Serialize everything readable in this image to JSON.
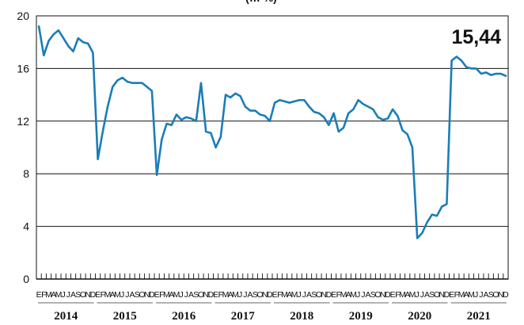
{
  "chart_data": {
    "type": "line",
    "title": "(… %)",
    "callout": "15,44",
    "ylim": [
      0,
      20
    ],
    "yticks": [
      "0",
      "4",
      "8",
      "12",
      "16",
      "20"
    ],
    "grid": "horizontal",
    "line_color": "#1a7db8",
    "month_labels": [
      "E",
      "F",
      "M",
      "A",
      "M",
      "J",
      "J",
      "A",
      "S",
      "O",
      "N",
      "D"
    ],
    "years": [
      "2014",
      "2015",
      "2016",
      "2017",
      "2018",
      "2019",
      "2020",
      "2021"
    ],
    "series": [
      {
        "values": [
          19.2,
          17.0,
          18.1,
          18.6,
          18.9,
          18.3,
          17.7,
          17.3,
          18.3,
          18.0,
          17.9,
          17.2,
          9.1,
          11.2,
          13.1,
          14.6,
          15.1,
          15.3,
          15.0,
          14.9,
          14.9,
          14.9,
          14.6,
          14.3,
          7.9,
          10.6,
          11.8,
          11.7,
          12.5,
          12.1,
          12.3,
          12.2,
          12.0,
          14.9,
          11.2,
          11.1,
          10.0,
          10.8,
          14.0,
          13.8,
          14.1,
          13.9,
          13.1,
          12.8,
          12.8,
          12.5,
          12.4,
          12.0,
          13.4,
          13.6,
          13.5,
          13.4,
          13.5,
          13.6,
          13.6,
          13.1,
          12.7,
          12.6,
          12.3,
          11.7,
          12.6,
          11.2,
          11.5,
          12.6,
          12.9,
          13.6,
          13.3,
          13.1,
          12.9,
          12.3,
          12.1,
          12.2,
          12.9,
          12.4,
          11.3,
          11.0,
          10.0,
          3.1,
          3.5,
          4.3,
          4.9,
          4.8,
          5.5,
          5.7,
          16.6,
          16.9,
          16.6,
          16.1,
          16.0,
          16.0,
          15.6,
          15.7,
          15.5,
          15.6,
          15.6,
          15.44
        ]
      }
    ]
  }
}
